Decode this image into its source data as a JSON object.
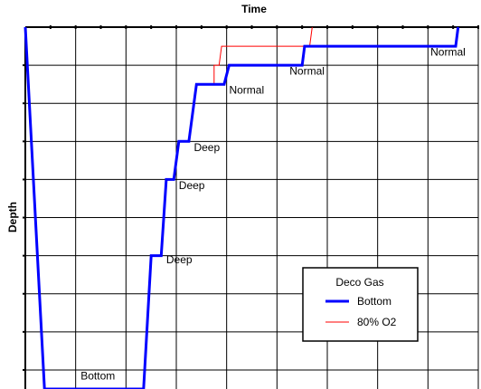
{
  "chart_data": {
    "type": "line",
    "title": "Time",
    "ylabel": "Depth",
    "xlabel": "",
    "xlim": [
      0,
      9
    ],
    "ylim": [
      0,
      9.5
    ],
    "y_inverted": true,
    "grid": true,
    "legend": {
      "title": "Deco Gas",
      "placement": "bottom-right",
      "entries": [
        {
          "label": "Bottom",
          "color": "#0000ff"
        },
        {
          "label": "80% O2",
          "color": "#ff0000"
        }
      ]
    },
    "series": [
      {
        "name": "Bottom",
        "color": "#0000ff",
        "points": [
          [
            0.0,
            0.0
          ],
          [
            0.38,
            9.5
          ],
          [
            2.35,
            9.5
          ],
          [
            2.5,
            6.0
          ],
          [
            2.7,
            6.0
          ],
          [
            2.8,
            4.0
          ],
          [
            2.95,
            4.0
          ],
          [
            3.05,
            3.0
          ],
          [
            3.25,
            3.0
          ],
          [
            3.4,
            1.5
          ],
          [
            3.95,
            1.5
          ],
          [
            4.05,
            1.0
          ],
          [
            5.5,
            1.0
          ],
          [
            5.55,
            0.5
          ],
          [
            8.55,
            0.5
          ],
          [
            8.6,
            0.0
          ]
        ]
      },
      {
        "name": "80% O2",
        "color": "#ff0000",
        "points": [
          [
            0.0,
            0.0
          ],
          [
            0.38,
            9.5
          ],
          [
            2.35,
            9.5
          ],
          [
            2.5,
            6.0
          ],
          [
            2.7,
            6.0
          ],
          [
            2.8,
            4.0
          ],
          [
            2.95,
            4.0
          ],
          [
            3.05,
            3.0
          ],
          [
            3.25,
            3.0
          ],
          [
            3.4,
            1.5
          ],
          [
            3.75,
            1.5
          ],
          [
            3.75,
            1.0
          ],
          [
            3.85,
            1.0
          ],
          [
            3.9,
            0.5
          ],
          [
            5.65,
            0.5
          ],
          [
            5.7,
            0.0
          ]
        ]
      }
    ],
    "annotations": [
      {
        "text": "Bottom",
        "x": 1.1,
        "y": 9.25
      },
      {
        "text": "Deep",
        "x": 2.8,
        "y": 6.2
      },
      {
        "text": "Deep",
        "x": 3.05,
        "y": 4.25
      },
      {
        "text": "Deep",
        "x": 3.35,
        "y": 3.25
      },
      {
        "text": "Normal",
        "x": 4.05,
        "y": 1.75
      },
      {
        "text": "Normal",
        "x": 5.25,
        "y": 1.25
      },
      {
        "text": "Normal",
        "x": 8.05,
        "y": 0.75
      }
    ]
  }
}
